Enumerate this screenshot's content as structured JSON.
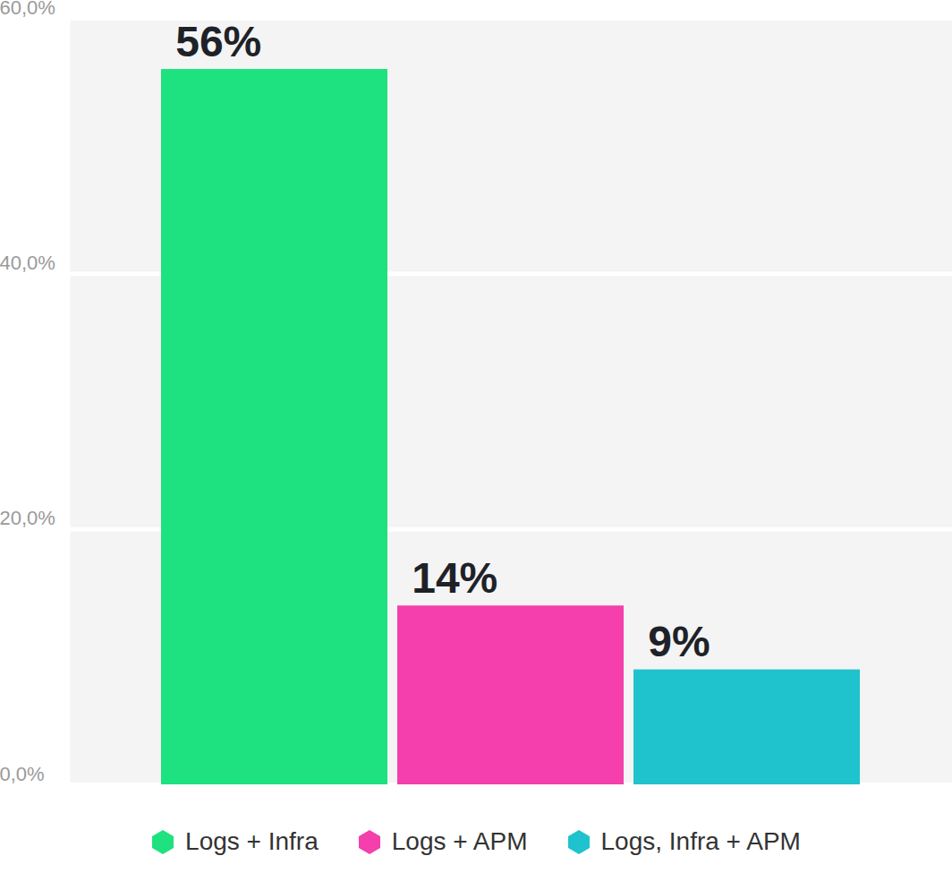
{
  "chart_data": {
    "type": "bar",
    "categories": [
      "Logs + Infra",
      "Logs + APM",
      "Logs, Infra + APM"
    ],
    "values": [
      56,
      14,
      9
    ],
    "value_labels": [
      "56%",
      "14%",
      "9%"
    ],
    "colors": [
      "#1de27f",
      "#f43fac",
      "#1fc3cd"
    ],
    "ylim": [
      0,
      60
    ],
    "yticks": [
      {
        "value": 0,
        "label": "0,0%"
      },
      {
        "value": 20,
        "label": "20,0%"
      },
      {
        "value": 40,
        "label": "40,0%"
      },
      {
        "value": 60,
        "label": "60,0%"
      }
    ],
    "grid": true,
    "data_labels": true,
    "legend": "bottom",
    "tick_labels": "y"
  }
}
